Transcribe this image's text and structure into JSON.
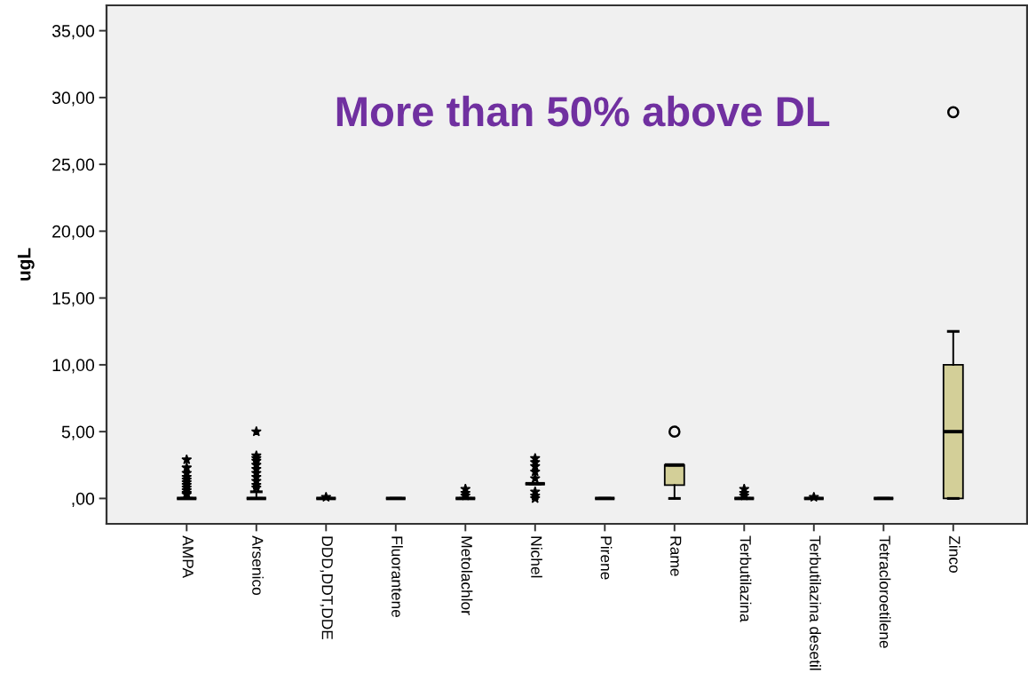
{
  "chart_data": {
    "type": "box",
    "ylabel": "ugL",
    "annotations": [
      "More than 50% above DL"
    ],
    "categories": [
      "AMPA",
      "Arsenico",
      "DDD,DDT,DDE",
      "Fluorantene",
      "Metolachlor",
      "Nichel",
      "Pirene",
      "Rame",
      "Terbutilazina",
      "Terbutilazina desetil",
      "Tetracloroetilene",
      "Zinco"
    ],
    "series": [
      {
        "colors": [
          "#000000",
          "#000000",
          "#000000",
          "#000000",
          "#000000",
          "#000000",
          "#000000",
          "#d3cf98",
          "#000000",
          "#000000",
          "#000000",
          "#d3cf98"
        ],
        "boxes": [
          {
            "low": 0,
            "q1": 0,
            "median": 0,
            "q3": 0,
            "high": 0,
            "outliers": [
              2.9,
              2.3,
              1.9,
              1.6,
              1.4,
              1.2,
              1.0,
              0.8,
              0.6,
              0.4,
              0.3
            ]
          },
          {
            "low": 0,
            "q1": 0,
            "median": 0,
            "q3": 0,
            "high": 0.5,
            "outliers": [
              5.0,
              3.2,
              3.0,
              2.8,
              2.5,
              2.2,
              1.9,
              1.6,
              1.3,
              1.0,
              0.8
            ]
          },
          {
            "low": 0,
            "q1": 0,
            "median": 0,
            "q3": 0,
            "high": 0,
            "outliers": [
              0.1
            ]
          },
          {
            "low": 0,
            "q1": 0,
            "median": 0,
            "q3": 0,
            "high": 0
          },
          {
            "low": 0,
            "q1": 0,
            "median": 0,
            "q3": 0,
            "high": 0,
            "outliers": [
              0.7,
              0.4,
              0.2
            ]
          },
          {
            "low": 1.1,
            "q1": 1.1,
            "median": 1.1,
            "q3": 1.1,
            "high": 1.1,
            "outliers": [
              3.0,
              2.7,
              2.4,
              2.0,
              1.5,
              0.5,
              0.2,
              0.0
            ]
          },
          {
            "low": 0,
            "q1": 0,
            "median": 0,
            "q3": 0,
            "high": 0
          },
          {
            "low": 0,
            "q1": 1.0,
            "median": 2.5,
            "q3": 2.5,
            "high": 2.5,
            "outliers": [
              5.0
            ]
          },
          {
            "low": 0,
            "q1": 0,
            "median": 0,
            "q3": 0,
            "high": 0,
            "outliers": [
              0.7,
              0.4,
              0.2
            ]
          },
          {
            "low": 0,
            "q1": 0,
            "median": 0,
            "q3": 0,
            "high": 0,
            "outliers": [
              0.1
            ]
          },
          {
            "low": 0,
            "q1": 0,
            "median": 0,
            "q3": 0,
            "high": 0
          },
          {
            "low": 0,
            "q1": 0,
            "median": 5.0,
            "q3": 10.0,
            "high": 12.5,
            "outliers": [
              28.9
            ]
          }
        ]
      }
    ],
    "ylim": [
      -1.9,
      36.9
    ],
    "yticks": [
      {
        "value": 0,
        "label": ",00"
      },
      {
        "value": 5,
        "label": "5,00"
      },
      {
        "value": 10,
        "label": "10,00"
      },
      {
        "value": 15,
        "label": "15,00"
      },
      {
        "value": 20,
        "label": "20,00"
      },
      {
        "value": 25,
        "label": "25,00"
      },
      {
        "value": 30,
        "label": "30,00"
      },
      {
        "value": 35,
        "label": "35,00"
      }
    ],
    "grid": false,
    "legend": false
  }
}
